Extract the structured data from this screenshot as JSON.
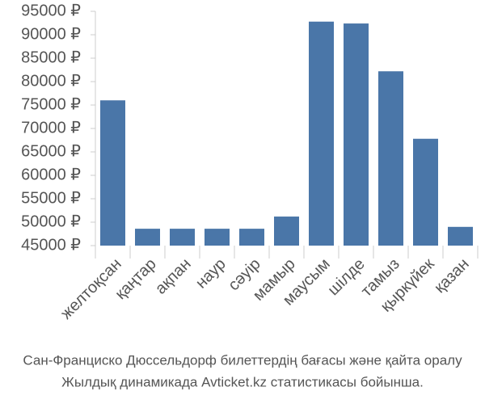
{
  "chart_data": {
    "type": "bar",
    "categories": [
      "желтоқсан",
      "қаңтар",
      "ақпан",
      "наур",
      "сәуір",
      "мамыр",
      "маусым",
      "шілде",
      "тамыз",
      "қыркүйек",
      "қазан"
    ],
    "values": [
      76000,
      48600,
      48600,
      48600,
      48600,
      51200,
      92800,
      92400,
      82200,
      67800,
      49000
    ],
    "color": "#4a76a8",
    "ylim": [
      45000,
      95000
    ],
    "yticks": [
      {
        "value": 45000,
        "label": "45000 ₽"
      },
      {
        "value": 50000,
        "label": "50000 ₽"
      },
      {
        "value": 55000,
        "label": "55000 ₽"
      },
      {
        "value": 60000,
        "label": "60000 ₽"
      },
      {
        "value": 65000,
        "label": "65000 ₽"
      },
      {
        "value": 70000,
        "label": "70000 ₽"
      },
      {
        "value": 75000,
        "label": "75000 ₽"
      },
      {
        "value": 80000,
        "label": "80000 ₽"
      },
      {
        "value": 85000,
        "label": "85000 ₽"
      },
      {
        "value": 90000,
        "label": "90000 ₽"
      },
      {
        "value": 95000,
        "label": "95000 ₽"
      }
    ],
    "caption": [
      "Сан-Франциско Дюссельдорф билеттердің бағасы және қайта оралу",
      "Жылдық динамикада Avticket.kz статистикасы бойынша."
    ]
  }
}
